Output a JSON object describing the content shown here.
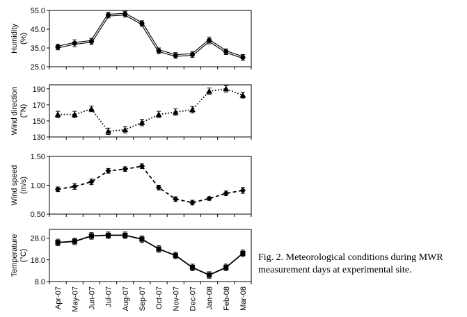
{
  "chart_data": {
    "type": "line",
    "shared_x": [
      "Apr-07",
      "May-07",
      "Jun-07",
      "Jul-07",
      "Aug-07",
      "Sep-07",
      "Oct-07",
      "Nov-07",
      "Dec-07",
      "Jan-08",
      "Feb-08",
      "Mar-08"
    ],
    "panels": [
      {
        "id": "humidity",
        "ylabel": [
          "Humidity",
          "(%)"
        ],
        "ylim": [
          25,
          55
        ],
        "yticks": [
          "25.0",
          "35.0",
          "45.0",
          "55.0"
        ],
        "ytick_values": [
          25,
          35,
          45,
          55
        ],
        "marker": "circle",
        "line_style": "double",
        "values": [
          35.5,
          37.5,
          38.5,
          52.5,
          53,
          48,
          33.5,
          31,
          31.5,
          39,
          33,
          30
        ],
        "errors": [
          1.5,
          1.8,
          1.6,
          1.5,
          1.5,
          1.5,
          1.5,
          1.5,
          1.5,
          1.8,
          1.5,
          1.5
        ]
      },
      {
        "id": "wind_direction",
        "ylabel": [
          "Wind direction",
          "(°N)"
        ],
        "ylim": [
          130,
          195
        ],
        "yticks": [
          "130",
          "150",
          "170",
          "190"
        ],
        "ytick_values": [
          130,
          150,
          170,
          190
        ],
        "marker": "triangle",
        "line_style": "dotted",
        "values": [
          158,
          158,
          165,
          137,
          139,
          148,
          158,
          161,
          164,
          187,
          190,
          182
        ],
        "errors": [
          4,
          4,
          3.5,
          4,
          4,
          4,
          4,
          4,
          4,
          4,
          4,
          3.5
        ]
      },
      {
        "id": "wind_speed",
        "ylabel": [
          "Wind speed",
          "(m/s)"
        ],
        "ylim": [
          0.5,
          1.5
        ],
        "yticks": [
          "0.50",
          "1.00",
          "1.50"
        ],
        "ytick_values": [
          0.5,
          1.0,
          1.5
        ],
        "marker": "diamond",
        "line_style": "dashed",
        "values": [
          0.93,
          0.98,
          1.06,
          1.25,
          1.28,
          1.33,
          0.96,
          0.76,
          0.7,
          0.77,
          0.86,
          0.91
        ],
        "errors": [
          0.04,
          0.05,
          0.05,
          0.04,
          0.04,
          0.04,
          0.04,
          0.04,
          0.04,
          0.03,
          0.04,
          0.05
        ]
      },
      {
        "id": "temperature",
        "ylabel": [
          "Temperature",
          "(°C)"
        ],
        "ylim": [
          8,
          32
        ],
        "yticks": [
          "8.0",
          "18.0",
          "28.0"
        ],
        "ytick_values": [
          8,
          18,
          28
        ],
        "marker": "square",
        "line_style": "solid",
        "values": [
          26,
          26.5,
          29,
          29.3,
          29.3,
          27.5,
          23,
          20,
          14.5,
          11,
          14.5,
          21
        ],
        "errors": [
          1.5,
          1.5,
          1.5,
          1.5,
          1.5,
          1.5,
          1.5,
          1.5,
          1.5,
          1.5,
          1.5,
          1.5
        ]
      }
    ]
  },
  "caption": {
    "line1": "Fig. 2. Meteorological conditions during MWR",
    "line2": "measurement days at experimental site."
  }
}
